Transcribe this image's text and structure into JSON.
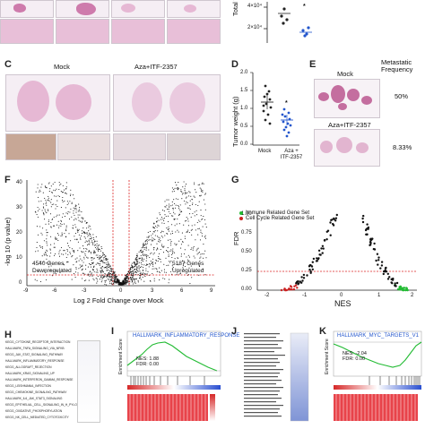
{
  "panels": {
    "letters": [
      "C",
      "D",
      "E",
      "F",
      "G",
      "H",
      "I",
      "J",
      "K"
    ]
  },
  "panel_b": {
    "ylabel": "Total Tumo",
    "ytick_top": "4×10⁴",
    "ytick_bottom": "2×10⁴",
    "star": "*"
  },
  "panel_c": {
    "mock_label": "Mock",
    "treated_label": "Aza+ITF-2357"
  },
  "panel_d": {
    "ylabel": "Tumor weight (g)",
    "yticks": [
      "2.0",
      "1.5",
      "1.0",
      "0.5",
      "0.0"
    ],
    "xlabels": [
      "Mock",
      "Aza +\nITF-2357"
    ],
    "star": "*",
    "colors": {
      "mock": "#222222",
      "treated": "#2255cc"
    }
  },
  "panel_e": {
    "metastatic_title": "Metastatic\nFrequency",
    "mock_label": "Mock",
    "mock_freq": "50%",
    "treated_label": "Aza+ITF-2357",
    "treated_freq": "8.33%"
  },
  "panel_f": {
    "ylabel": "-log 10 (p value)",
    "xlabel": "Log 2 Fold Change over Mock",
    "yticks": [
      "40",
      "30",
      "20",
      "10",
      "0"
    ],
    "xticks": [
      "-9",
      "-6",
      "-3",
      "0",
      "3",
      "6",
      "9"
    ],
    "down_text": "4540 Genes\nDownregulated",
    "up_text": "5187 Genes\nUpregulated"
  },
  "panel_g": {
    "ylabel": "FDR",
    "xlabel": "NES",
    "yticks": [
      "1.00",
      "0.75",
      "0.50",
      "0.25",
      "0.00"
    ],
    "xticks": [
      "-2",
      "-1",
      "0",
      "1",
      "2"
    ],
    "legend": [
      {
        "name": "Immune Related Gene Set",
        "color": "#22bb33"
      },
      {
        "name": "Cell Cycle Related Gene Set",
        "color": "#cc2222"
      }
    ]
  },
  "panel_h": {
    "gene_sets": [
      "KEGG_CYTOKINE_RECEPTOR_INTERACTION",
      "HALLMARK_TNFA_SIGNALING_VIA_NFKB",
      "KEGG_JAK_STAT_SIGNALING_PATHWAY",
      "HALLMARK_INFLAMMATORY_RESPONSE",
      "KEGG_ALLOGRAFT_REJECTION",
      "HALLMARK_KRAS_SIGNALING_UP",
      "HALLMARK_INTERFERON_GAMMA_RESPONSE",
      "KEGG_LEISHMANIA_INFECTION",
      "KEGG_CHEMOKINE_SIGNALING_PATHWAY",
      "HALLMARK_IL6_JAK_STAT3_SIGNALING",
      "KEGG_EPITHELIAL_CELL_SIGNALING_IN_H_PYLORI_INFECTION",
      "KEGG_OXIDATIVE_PHOSPHORYLATION",
      "KEGG_NK_CELL_MEDIATED_CYTOTOXICITY"
    ]
  },
  "panel_i": {
    "title": "HALLMARK_INFLAMMATORY_RESPONSE",
    "ylabel": "Enrichment Score",
    "nes": "NES: 1.88",
    "fdr": "FDR: 0.00"
  },
  "panel_k": {
    "title": "HALLMARK_MYC_TARGETS_V1",
    "ylabel": "Enrichment Score",
    "nes": "NES: -2.04",
    "fdr": "FDR: 0.00"
  }
}
